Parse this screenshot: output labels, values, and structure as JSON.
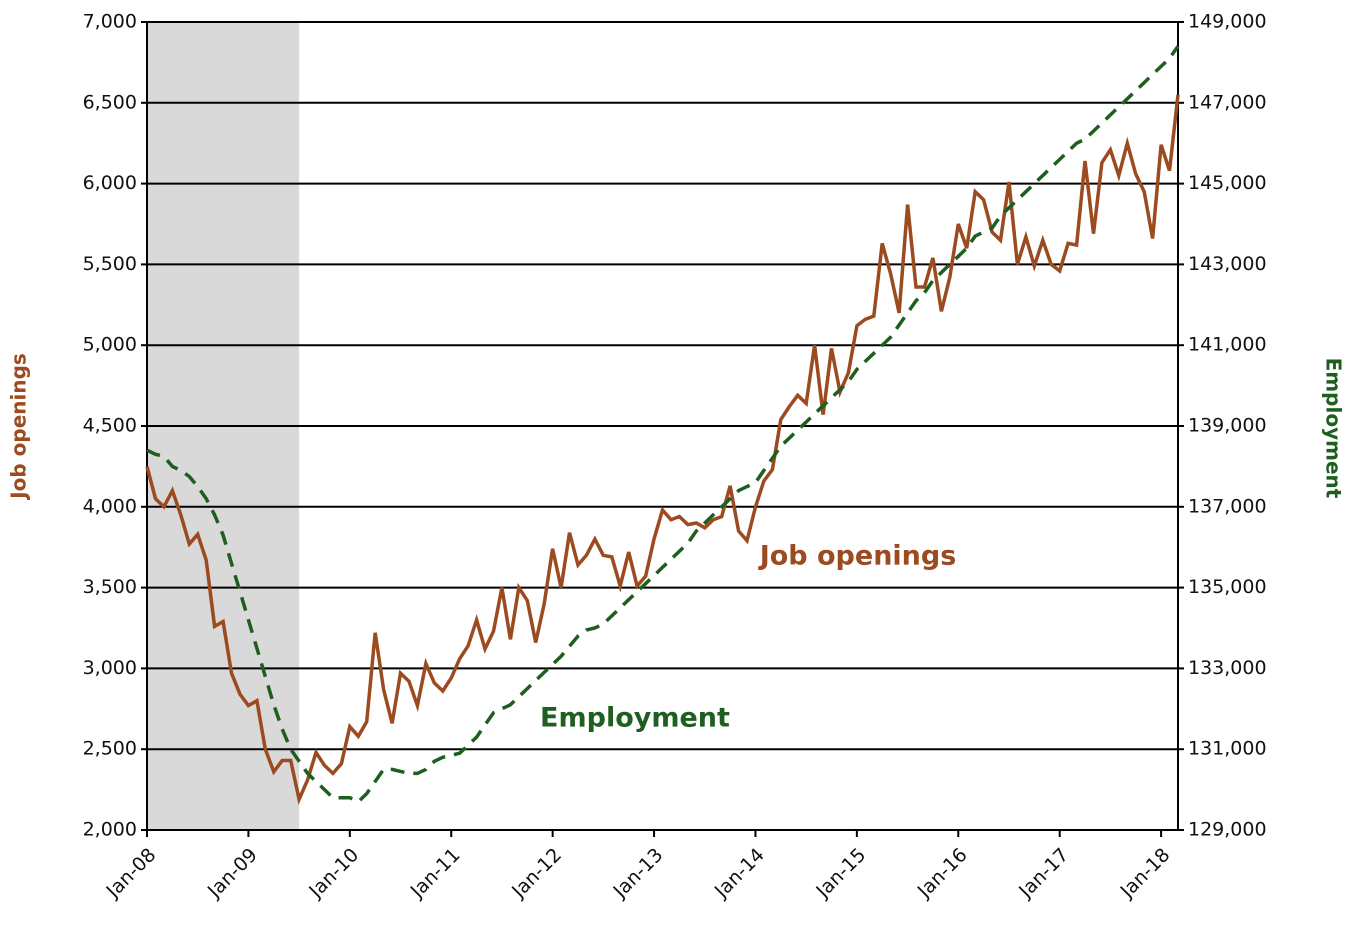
{
  "chart_data": {
    "type": "line",
    "annotations": [
      {
        "text": "Job openings",
        "series": 0
      },
      {
        "text": "Employment",
        "series": 1
      }
    ],
    "ylabel": "Job openings",
    "y2label": "Employment",
    "categories": [
      "Jan-08",
      null,
      null,
      null,
      null,
      null,
      null,
      null,
      null,
      null,
      null,
      null,
      "Jan-09",
      null,
      null,
      null,
      null,
      null,
      null,
      null,
      null,
      null,
      null,
      null,
      "Jan-10",
      null,
      null,
      null,
      null,
      null,
      null,
      null,
      null,
      null,
      null,
      null,
      "Jan-11",
      null,
      null,
      null,
      null,
      null,
      null,
      null,
      null,
      null,
      null,
      null,
      "Jan-12",
      null,
      null,
      null,
      null,
      null,
      null,
      null,
      null,
      null,
      null,
      null,
      "Jan-13",
      null,
      null,
      null,
      null,
      null,
      null,
      null,
      null,
      null,
      null,
      null,
      "Jan-14",
      null,
      null,
      null,
      null,
      null,
      null,
      null,
      null,
      null,
      null,
      null,
      "Jan-15",
      null,
      null,
      null,
      null,
      null,
      null,
      null,
      null,
      null,
      null,
      null,
      "Jan-16",
      null,
      null,
      null,
      null,
      null,
      null,
      null,
      null,
      null,
      null,
      null,
      "Jan-17",
      null,
      null,
      null,
      null,
      null,
      null,
      null,
      null,
      null,
      null,
      null,
      "Jan-18",
      null,
      null
    ],
    "shaded_range": [
      0,
      18
    ],
    "shade_color": "#d9d9d9",
    "series": [
      {
        "name": "Job openings",
        "color": "#9c4a1f",
        "dashed": false,
        "axis": "y",
        "values": [
          4250,
          4050,
          4000,
          4100,
          3950,
          3770,
          3830,
          3670,
          3260,
          3290,
          2970,
          2840,
          2770,
          2800,
          2500,
          2360,
          2430,
          2430,
          2190,
          2310,
          2480,
          2400,
          2350,
          2410,
          2640,
          2580,
          2670,
          3220,
          2870,
          2660,
          2970,
          2920,
          2770,
          3030,
          2910,
          2860,
          2940,
          3060,
          3140,
          3300,
          3120,
          3230,
          3500,
          3180,
          3500,
          3420,
          3160,
          3400,
          3740,
          3500,
          3840,
          3640,
          3700,
          3800,
          3700,
          3690,
          3510,
          3720,
          3510,
          3570,
          3800,
          3980,
          3920,
          3940,
          3890,
          3900,
          3870,
          3920,
          3940,
          4130,
          3850,
          3790,
          4000,
          4160,
          4230,
          4540,
          4620,
          4690,
          4640,
          5000,
          4570,
          4980,
          4710,
          4830,
          5120,
          5160,
          5180,
          5630,
          5440,
          5200,
          5870,
          5360,
          5360,
          5540,
          5210,
          5420,
          5750,
          5600,
          5950,
          5900,
          5700,
          5650,
          6010,
          5500,
          5670,
          5490,
          5650,
          5500,
          5460,
          5630,
          5620,
          6140,
          5690,
          6130,
          6210,
          6050,
          6250,
          6060,
          5950,
          5660,
          6240,
          6080,
          6550
        ]
      },
      {
        "name": "Employment",
        "color": "#1e5e1e",
        "dashed": true,
        "axis": "y2",
        "values": [
          138400,
          138300,
          138250,
          138000,
          137900,
          137750,
          137500,
          137200,
          136800,
          136300,
          135600,
          134900,
          134200,
          133500,
          132800,
          132100,
          131500,
          131000,
          130700,
          130400,
          130200,
          130000,
          129800,
          129800,
          129800,
          129700,
          129900,
          130200,
          130500,
          130500,
          130450,
          130400,
          130400,
          130500,
          130700,
          130800,
          130850,
          130900,
          131100,
          131300,
          131600,
          131900,
          132000,
          132100,
          132300,
          132500,
          132700,
          132900,
          133100,
          133300,
          133550,
          133800,
          133950,
          134000,
          134100,
          134300,
          134500,
          134700,
          134900,
          135100,
          135300,
          135500,
          135700,
          135900,
          136100,
          136400,
          136600,
          136800,
          137000,
          137200,
          137400,
          137500,
          137600,
          137900,
          138200,
          138500,
          138700,
          138900,
          139100,
          139300,
          139500,
          139700,
          139900,
          140100,
          140400,
          140600,
          140800,
          141000,
          141200,
          141500,
          141800,
          142100,
          142300,
          142600,
          142800,
          143000,
          143200,
          143400,
          143700,
          143800,
          143900,
          144200,
          144400,
          144600,
          144800,
          145000,
          145200,
          145400,
          145600,
          145800,
          146000,
          146100,
          146300,
          146500,
          146700,
          146900,
          147100,
          147300,
          147500,
          147700,
          147900,
          148100,
          148400
        ]
      }
    ],
    "ylim": [
      2000,
      7000
    ],
    "yticks": [
      {
        "value": 2000,
        "label": "2,000"
      },
      {
        "value": 2500,
        "label": "2,500"
      },
      {
        "value": 3000,
        "label": "3,000"
      },
      {
        "value": 3500,
        "label": "3,500"
      },
      {
        "value": 4000,
        "label": "4,000"
      },
      {
        "value": 4500,
        "label": "4,500"
      },
      {
        "value": 5000,
        "label": "5,000"
      },
      {
        "value": 5500,
        "label": "5,500"
      },
      {
        "value": 6000,
        "label": "6,000"
      },
      {
        "value": 6500,
        "label": "6,500"
      },
      {
        "value": 7000,
        "label": "7,000"
      }
    ],
    "y2lim": [
      129000,
      149000
    ],
    "y2ticks": [
      {
        "value": 129000,
        "label": "129,000"
      },
      {
        "value": 131000,
        "label": "131,000"
      },
      {
        "value": 133000,
        "label": "133,000"
      },
      {
        "value": 135000,
        "label": "135,000"
      },
      {
        "value": 137000,
        "label": "137,000"
      },
      {
        "value": 139000,
        "label": "139,000"
      },
      {
        "value": 141000,
        "label": "141,000"
      },
      {
        "value": 143000,
        "label": "143,000"
      },
      {
        "value": 145000,
        "label": "145,000"
      },
      {
        "value": 147000,
        "label": "147,000"
      },
      {
        "value": 149000,
        "label": "149,000"
      }
    ],
    "grid": true
  }
}
